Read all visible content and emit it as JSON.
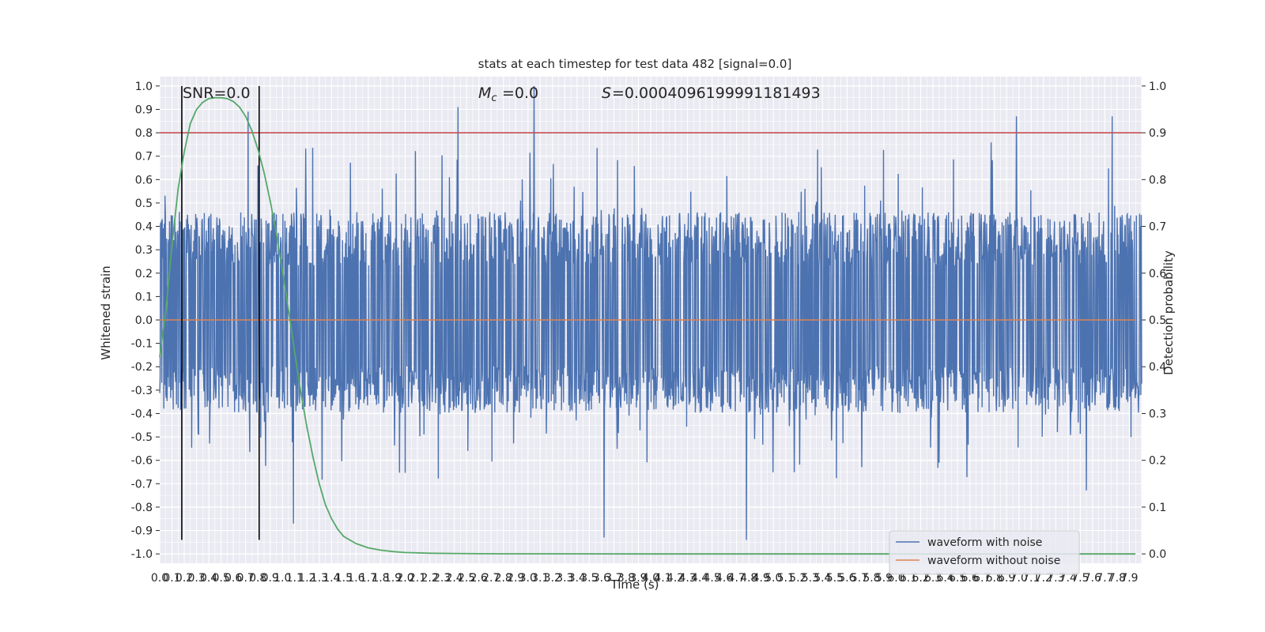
{
  "chart_data": {
    "type": "line",
    "title": "stats at each timestep for test data 482 [signal=0.0]",
    "xlabel": "Time (s)",
    "ylabel": "Whitened strain",
    "y2label": "Detection probability",
    "xlim": [
      0.0,
      8.0
    ],
    "ylim": [
      -1.04,
      1.04
    ],
    "y2lim": [
      -0.02,
      1.02
    ],
    "x_ticks": [
      "0.0",
      "0.1",
      "0.2",
      "0.3",
      "0.4",
      "0.5",
      "0.6",
      "0.7",
      "0.8",
      "0.9",
      "1.0",
      "1.1",
      "1.2",
      "1.3",
      "1.4",
      "1.5",
      "1.6",
      "1.7",
      "1.8",
      "1.9",
      "2.0",
      "2.1",
      "2.2",
      "2.3",
      "2.4",
      "2.5",
      "2.6",
      "2.7",
      "2.8",
      "2.9",
      "3.0",
      "3.1",
      "3.2",
      "3.3",
      "3.4",
      "3.5",
      "3.6",
      "3.7",
      "3.8",
      "3.9",
      "4.0",
      "4.1",
      "4.2",
      "4.3",
      "4.4",
      "4.5",
      "4.6",
      "4.7",
      "4.8",
      "4.9",
      "5.0",
      "5.1",
      "5.2",
      "5.3",
      "5.4",
      "5.5",
      "5.6",
      "5.7",
      "5.8",
      "5.9",
      "6.0",
      "6.1",
      "6.2",
      "6.3",
      "6.4",
      "6.5",
      "6.6",
      "6.7",
      "6.8",
      "6.9",
      "7.0",
      "7.1",
      "7.2",
      "7.3",
      "7.4",
      "7.5",
      "7.6",
      "7.7",
      "7.8",
      "7.9"
    ],
    "y_ticks": [
      "1.0",
      "0.9",
      "0.8",
      "0.7",
      "0.6",
      "0.5",
      "0.4",
      "0.3",
      "0.2",
      "0.1",
      "0.0",
      "-0.1",
      "-0.2",
      "-0.3",
      "-0.4",
      "-0.5",
      "-0.6",
      "-0.7",
      "-0.8",
      "-0.9",
      "-1.0"
    ],
    "y2_ticks": [
      "1.0",
      "0.9",
      "0.8",
      "0.7",
      "0.6",
      "0.5",
      "0.4",
      "0.3",
      "0.2",
      "0.1",
      "0.0"
    ],
    "annotations": {
      "snr": "SNR=0.0",
      "mc": "=0.0",
      "s": "=0.0004096199991181493"
    },
    "vlines_x": [
      0.18,
      0.81
    ],
    "threshold_y2": 0.9,
    "legend_position": "lower-right",
    "grid": true,
    "series": [
      {
        "name": "waveform with noise",
        "color": "#4c72b0",
        "kind": "noise",
        "x_range": [
          0.0,
          8.0
        ],
        "envelope_typical": [
          -0.36,
          0.42
        ],
        "peaks": [
          [
            3.05,
            1.0
          ],
          [
            2.43,
            0.91
          ],
          [
            0.72,
            0.89
          ],
          [
            6.98,
            0.87
          ],
          [
            7.76,
            0.87
          ],
          [
            4.78,
            -0.94
          ],
          [
            3.62,
            -0.93
          ],
          [
            1.09,
            -0.87
          ]
        ]
      },
      {
        "name": "waveform without noise",
        "color": "#dd8452",
        "values_constant": 0.0
      },
      {
        "name": "detection probability",
        "color": "#55a868",
        "axis": "right",
        "x": [
          0.0,
          0.05,
          0.1,
          0.15,
          0.2,
          0.25,
          0.3,
          0.35,
          0.4,
          0.45,
          0.5,
          0.55,
          0.6,
          0.65,
          0.7,
          0.75,
          0.8,
          0.85,
          0.9,
          0.95,
          1.0,
          1.05,
          1.1,
          1.15,
          1.2,
          1.25,
          1.3,
          1.35,
          1.4,
          1.45,
          1.5,
          1.6,
          1.7,
          1.8,
          1.9,
          2.0,
          2.2,
          2.4,
          2.6,
          2.8,
          3.0,
          4.0,
          5.0,
          6.0,
          7.0,
          7.95
        ],
        "y": [
          0.42,
          0.52,
          0.66,
          0.78,
          0.86,
          0.92,
          0.95,
          0.965,
          0.973,
          0.975,
          0.975,
          0.973,
          0.967,
          0.955,
          0.935,
          0.905,
          0.865,
          0.815,
          0.755,
          0.685,
          0.605,
          0.52,
          0.43,
          0.345,
          0.27,
          0.205,
          0.15,
          0.105,
          0.075,
          0.053,
          0.037,
          0.022,
          0.013,
          0.008,
          0.005,
          0.003,
          0.0015,
          0.001,
          0.0005,
          0.0003,
          0.0002,
          0.0,
          0.0,
          0.0,
          0.0,
          0.0
        ]
      }
    ]
  }
}
